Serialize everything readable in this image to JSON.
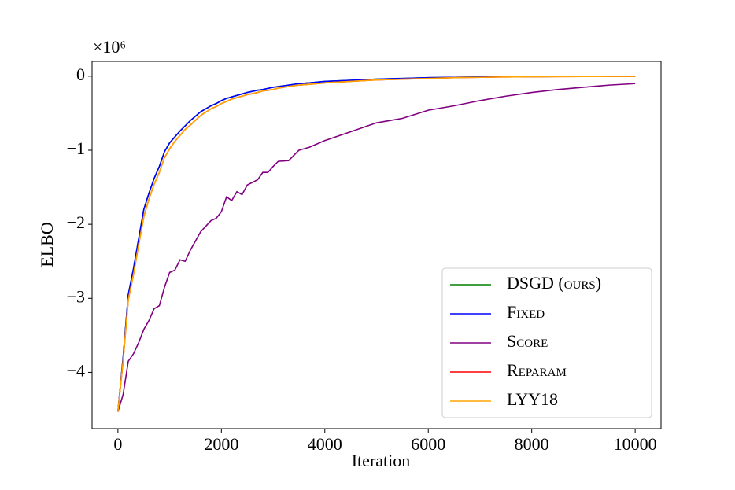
{
  "chart_data": {
    "type": "line",
    "x_label": "Iteration",
    "y_label": "ELBO",
    "y_offset_label": "×10⁶",
    "x": [
      0,
      100,
      200,
      300,
      400,
      500,
      600,
      700,
      800,
      900,
      1000,
      1100,
      1200,
      1300,
      1400,
      1600,
      1800,
      1900,
      2000,
      2100,
      2200,
      2300,
      2400,
      2500,
      2700,
      2800,
      2900,
      3000,
      3100,
      3300,
      3500,
      3700,
      4000,
      4500,
      5000,
      5500,
      6000,
      6500,
      7000,
      7500,
      8000,
      8500,
      9000,
      9500,
      10000
    ],
    "series": [
      {
        "name": "DSGD (ours)",
        "color": "#008000",
        "values": [
          -4.53,
          -3.8,
          -2.95,
          -2.6,
          -2.2,
          -1.8,
          -1.58,
          -1.38,
          -1.22,
          -1.02,
          -0.9,
          -0.82,
          -0.74,
          -0.67,
          -0.6,
          -0.48,
          -0.4,
          -0.37,
          -0.33,
          -0.3,
          -0.28,
          -0.26,
          -0.24,
          -0.22,
          -0.19,
          -0.18,
          -0.165,
          -0.15,
          -0.14,
          -0.12,
          -0.1,
          -0.09,
          -0.07,
          -0.055,
          -0.04,
          -0.03,
          -0.02,
          -0.015,
          -0.01,
          -0.008,
          -0.005,
          -0.004,
          -0.003,
          -0.002,
          -0.002
        ]
      },
      {
        "name": "Fixed",
        "color": "#0000ff",
        "values": [
          -4.53,
          -3.8,
          -2.95,
          -2.6,
          -2.2,
          -1.8,
          -1.58,
          -1.38,
          -1.22,
          -1.02,
          -0.9,
          -0.82,
          -0.74,
          -0.67,
          -0.6,
          -0.48,
          -0.4,
          -0.37,
          -0.33,
          -0.3,
          -0.28,
          -0.26,
          -0.24,
          -0.22,
          -0.19,
          -0.18,
          -0.165,
          -0.15,
          -0.14,
          -0.12,
          -0.1,
          -0.09,
          -0.07,
          -0.055,
          -0.04,
          -0.03,
          -0.02,
          -0.015,
          -0.01,
          -0.008,
          -0.005,
          -0.004,
          -0.003,
          -0.002,
          -0.002
        ]
      },
      {
        "name": "Score",
        "color": "#800080",
        "values": [
          -4.53,
          -4.3,
          -3.85,
          -3.75,
          -3.6,
          -3.42,
          -3.3,
          -3.14,
          -3.1,
          -2.85,
          -2.65,
          -2.62,
          -2.48,
          -2.5,
          -2.35,
          -2.1,
          -1.95,
          -1.92,
          -1.83,
          -1.63,
          -1.68,
          -1.56,
          -1.6,
          -1.47,
          -1.4,
          -1.3,
          -1.3,
          -1.22,
          -1.15,
          -1.14,
          -1.0,
          -0.96,
          -0.87,
          -0.75,
          -0.63,
          -0.57,
          -0.46,
          -0.4,
          -0.33,
          -0.27,
          -0.22,
          -0.18,
          -0.15,
          -0.12,
          -0.1
        ]
      },
      {
        "name": "Reparam",
        "color": "#ff0000",
        "values": [
          -4.53,
          -3.85,
          -3.02,
          -2.68,
          -2.28,
          -1.9,
          -1.66,
          -1.46,
          -1.3,
          -1.1,
          -0.98,
          -0.88,
          -0.8,
          -0.72,
          -0.66,
          -0.53,
          -0.44,
          -0.41,
          -0.37,
          -0.34,
          -0.31,
          -0.29,
          -0.27,
          -0.25,
          -0.22,
          -0.2,
          -0.19,
          -0.18,
          -0.16,
          -0.14,
          -0.12,
          -0.11,
          -0.09,
          -0.07,
          -0.05,
          -0.04,
          -0.03,
          -0.02,
          -0.015,
          -0.01,
          -0.007,
          -0.005,
          -0.004,
          -0.003,
          -0.003
        ]
      },
      {
        "name": "LYY18",
        "color": "#ffa500",
        "values": [
          -4.53,
          -3.85,
          -3.02,
          -2.68,
          -2.28,
          -1.9,
          -1.66,
          -1.46,
          -1.3,
          -1.1,
          -0.98,
          -0.88,
          -0.8,
          -0.72,
          -0.66,
          -0.53,
          -0.44,
          -0.41,
          -0.37,
          -0.34,
          -0.31,
          -0.29,
          -0.27,
          -0.25,
          -0.22,
          -0.2,
          -0.19,
          -0.18,
          -0.16,
          -0.14,
          -0.12,
          -0.11,
          -0.09,
          -0.07,
          -0.05,
          -0.04,
          -0.03,
          -0.02,
          -0.015,
          -0.01,
          -0.007,
          -0.005,
          -0.004,
          -0.003,
          -0.003
        ]
      }
    ],
    "xlim": [
      -500,
      10500
    ],
    "xticks": [
      0,
      2000,
      4000,
      6000,
      8000,
      10000
    ],
    "ylim": [
      -4.76,
      0.2
    ],
    "yticks": [
      {
        "value": -4,
        "label": "−4"
      },
      {
        "value": -3,
        "label": "−3"
      },
      {
        "value": -2,
        "label": "−2"
      },
      {
        "value": -1,
        "label": "−1"
      },
      0
    ],
    "grid": false,
    "legend": "lower right"
  }
}
